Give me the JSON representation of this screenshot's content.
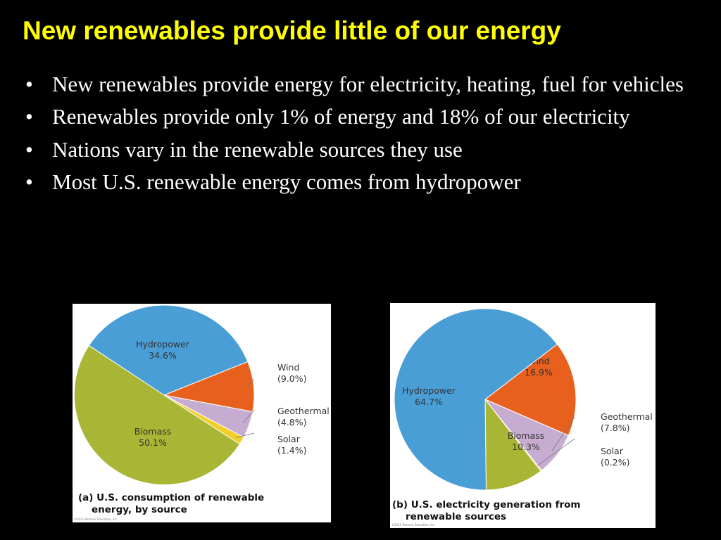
{
  "slide": {
    "title": "New renewables provide little of our energy",
    "bullets": [
      "New renewables provide energy for electricity, heating, fuel for vehicles",
      "Renewables provide only 1% of energy and 18% of our electricity",
      "Nations vary in the renewable sources they use",
      "Most U.S. renewable energy comes from hydropower"
    ]
  },
  "colors": {
    "title": "#FFFF00",
    "text": "#FFFFFF",
    "background": "#000000",
    "hydropower": "#4A9ED6",
    "wind": "#E8601E",
    "geothermal": "#C7ACD1",
    "solar": "#F3CE26",
    "biomass": "#A9B535"
  },
  "chart_data": [
    {
      "type": "pie",
      "caption_line1": "(a) U.S. consumption of renewable",
      "caption_line2": "energy, by source",
      "copyright": "©2011 Pearson Education, Inc.",
      "slices": [
        {
          "name": "Hydropower",
          "value": 34.6,
          "label": "34.6%",
          "color": "#4A9ED6"
        },
        {
          "name": "Wind",
          "value": 9.0,
          "label": "(9.0%)",
          "color": "#E8601E"
        },
        {
          "name": "Geothermal",
          "value": 4.8,
          "label": "(4.8%)",
          "color": "#C7ACD1"
        },
        {
          "name": "Solar",
          "value": 1.4,
          "label": "(1.4%)",
          "color": "#F3CE26"
        },
        {
          "name": "Biomass",
          "value": 50.1,
          "label": "50.1%",
          "color": "#A9B535"
        }
      ]
    },
    {
      "type": "pie",
      "caption_line1": "(b) U.S. electricity generation from",
      "caption_line2": "renewable sources",
      "copyright": "©2011 Pearson Education, Inc.",
      "slices": [
        {
          "name": "Wind",
          "value": 16.9,
          "label": "16.9%",
          "color": "#E8601E"
        },
        {
          "name": "Geothermal",
          "value": 7.8,
          "label": "(7.8%)",
          "color": "#C7ACD1"
        },
        {
          "name": "Solar",
          "value": 0.2,
          "label": "(0.2%)",
          "color": "#F3CE26"
        },
        {
          "name": "Biomass",
          "value": 10.3,
          "label": "10.3%",
          "color": "#A9B535"
        },
        {
          "name": "Hydropower",
          "value": 64.7,
          "label": "64.7%",
          "color": "#4A9ED6"
        }
      ]
    }
  ]
}
